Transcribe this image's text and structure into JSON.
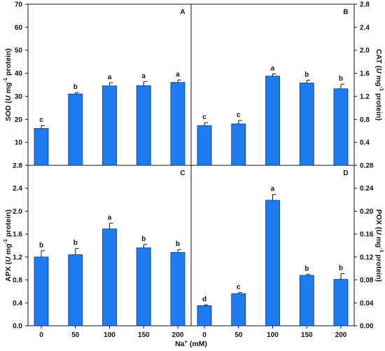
{
  "chart_data": [
    {
      "id": "A",
      "type": "bar",
      "panel_label": "A",
      "ylabel_pre": "SOD (",
      "ylabel_italic": "U",
      "ylabel_mid": " mg",
      "ylabel_sup": "-1",
      "ylabel_post": " protein)",
      "ylim": [
        0,
        70
      ],
      "yticks": [
        "10",
        "20",
        "30",
        "40",
        "50",
        "60",
        "70"
      ],
      "ytick_values": [
        10,
        20,
        30,
        40,
        50,
        60,
        70
      ],
      "categories": [
        "0",
        "50",
        "100",
        "150",
        "200"
      ],
      "values": [
        16,
        31,
        34.5,
        34.6,
        36
      ],
      "errors": [
        1.3,
        0.6,
        1.4,
        1.8,
        1.1
      ],
      "letters": [
        "c",
        "b",
        "a",
        "a",
        "a"
      ]
    },
    {
      "id": "B",
      "type": "bar",
      "panel_label": "B",
      "ylabel_pre": "CAT (",
      "ylabel_italic": "U",
      "ylabel_mid": " mg",
      "ylabel_sup": "-1",
      "ylabel_post": " protein)",
      "ylim": [
        0,
        2.8
      ],
      "yticks": [
        "0.4",
        "0.8",
        "1.2",
        "1.6",
        "2.0",
        "2.4",
        "2.8"
      ],
      "ytick_values": [
        0.4,
        0.8,
        1.2,
        1.6,
        2.0,
        2.4,
        2.8
      ],
      "categories": [
        "0",
        "50",
        "100",
        "150",
        "200"
      ],
      "values": [
        0.69,
        0.72,
        1.55,
        1.43,
        1.33
      ],
      "errors": [
        0.05,
        0.06,
        0.04,
        0.05,
        0.08
      ],
      "letters": [
        "c",
        "c",
        "a",
        "b",
        "b"
      ]
    },
    {
      "id": "C",
      "type": "bar",
      "panel_label": "C",
      "ylabel_pre": "APX (",
      "ylabel_italic": "U",
      "ylabel_mid": " mg",
      "ylabel_sup": "-1",
      "ylabel_post": " protein)",
      "ylim": [
        0,
        2.8
      ],
      "yticks": [
        "0.0",
        "0.4",
        "0.8",
        "1.2",
        "1.6",
        "2.0",
        "2.4",
        "2.8"
      ],
      "ytick_values": [
        0,
        0.4,
        0.8,
        1.2,
        1.6,
        2.0,
        2.4,
        2.8
      ],
      "categories": [
        "0",
        "50",
        "100",
        "150",
        "200"
      ],
      "values": [
        1.2,
        1.24,
        1.69,
        1.36,
        1.28
      ],
      "errors": [
        0.11,
        0.11,
        0.1,
        0.06,
        0.05
      ],
      "letters": [
        "b",
        "b",
        "a",
        "b",
        "b"
      ]
    },
    {
      "id": "D",
      "type": "bar",
      "panel_label": "D",
      "ylabel_pre": "POX (",
      "ylabel_italic": "U",
      "ylabel_mid": " mg",
      "ylabel_sup": "-1",
      "ylabel_post": " protein)",
      "ylim": [
        0,
        0.28
      ],
      "yticks": [
        "0.00",
        "0.04",
        "0.08",
        "0.12",
        "0.16",
        "0.20",
        "0.24",
        "0.28"
      ],
      "ytick_values": [
        0,
        0.04,
        0.08,
        0.12,
        0.16,
        0.2,
        0.24,
        0.28
      ],
      "categories": [
        "0",
        "50",
        "100",
        "150",
        "200"
      ],
      "values": [
        0.035,
        0.056,
        0.219,
        0.088,
        0.081
      ],
      "errors": [
        0.0015,
        0.002,
        0.01,
        0.002,
        0.01
      ],
      "letters": [
        "d",
        "c",
        "a",
        "b",
        "b"
      ]
    }
  ],
  "xlabel": {
    "pre": "Na",
    "sup": "+",
    "post": " (mM)"
  },
  "colors": {
    "bar": "#1e7cf0",
    "bar_edge": "#0b2f66",
    "axis": "#111111"
  }
}
